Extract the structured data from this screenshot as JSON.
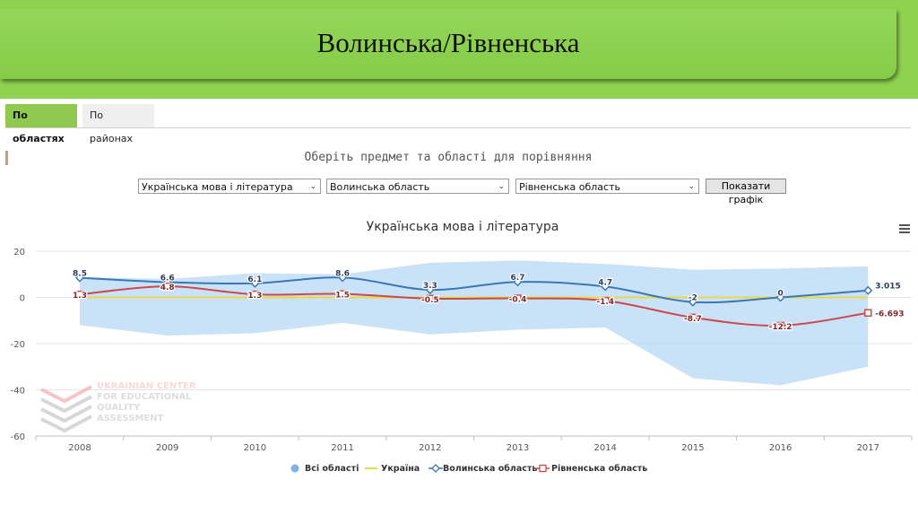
{
  "header": {
    "title": "Волинська/Рівненська"
  },
  "tabs": [
    {
      "label": "По областях",
      "active": true
    },
    {
      "label": "По районах",
      "active": false
    }
  ],
  "prompt": "Оберіть предмет та області для порівняння",
  "controls": {
    "subject": "Українська мова і література",
    "region1": "Волинська область",
    "region2": "Рівненська область",
    "show_button": "Показати графік"
  },
  "watermark": {
    "lines": [
      "UKRAINIAN CENTER",
      "FOR EDUCATIONAL",
      "QUALITY",
      "ASSESSMENT"
    ]
  },
  "chart_data": {
    "type": "line",
    "title": "Українська мова і література",
    "xlabel": "",
    "ylabel": "",
    "categories": [
      "2008",
      "2009",
      "2010",
      "2011",
      "2012",
      "2013",
      "2014",
      "2015",
      "2016",
      "2017"
    ],
    "ylim": [
      -60,
      20
    ],
    "yticks": [
      20,
      0,
      -20,
      -40,
      -60
    ],
    "grid": true,
    "legend_position": "bottom",
    "series": [
      {
        "name": "Всі області",
        "kind": "range",
        "color": "#b8d8f5",
        "low": [
          -12,
          -16.5,
          -15.5,
          -11,
          -16,
          -14,
          -13,
          -35,
          -38,
          -30
        ],
        "high": [
          8.8,
          8,
          10.5,
          10,
          15,
          16,
          14.5,
          12,
          12.5,
          13.5
        ]
      },
      {
        "name": "Україна",
        "kind": "line",
        "color": "#e8d84a",
        "values": [
          0,
          0,
          0,
          0,
          0,
          0,
          0,
          0,
          0,
          0
        ]
      },
      {
        "name": "Волинська область",
        "kind": "line",
        "color": "#3a78b5",
        "marker": "diamond",
        "values": [
          8.5,
          6.6,
          6.1,
          8.6,
          3.3,
          6.7,
          4.7,
          -2,
          0,
          3.015
        ],
        "labels": [
          "8.5",
          "6.6",
          "6.1",
          "8.6",
          "3.3",
          "6.7",
          "4.7",
          "-2",
          "0",
          "3.015"
        ]
      },
      {
        "name": "Рівненська область",
        "kind": "line",
        "color": "#c94a4a",
        "marker": "square",
        "values": [
          1.3,
          4.8,
          1.3,
          1.5,
          -0.5,
          -0.4,
          -1.4,
          -8.7,
          -12.2,
          -6.693
        ],
        "labels": [
          "1.3",
          "4.8",
          "1.3",
          "1.5",
          "-0.5",
          "-0.4",
          "-1.4",
          "-8.7",
          "-12.2",
          "-6.693"
        ]
      }
    ]
  }
}
